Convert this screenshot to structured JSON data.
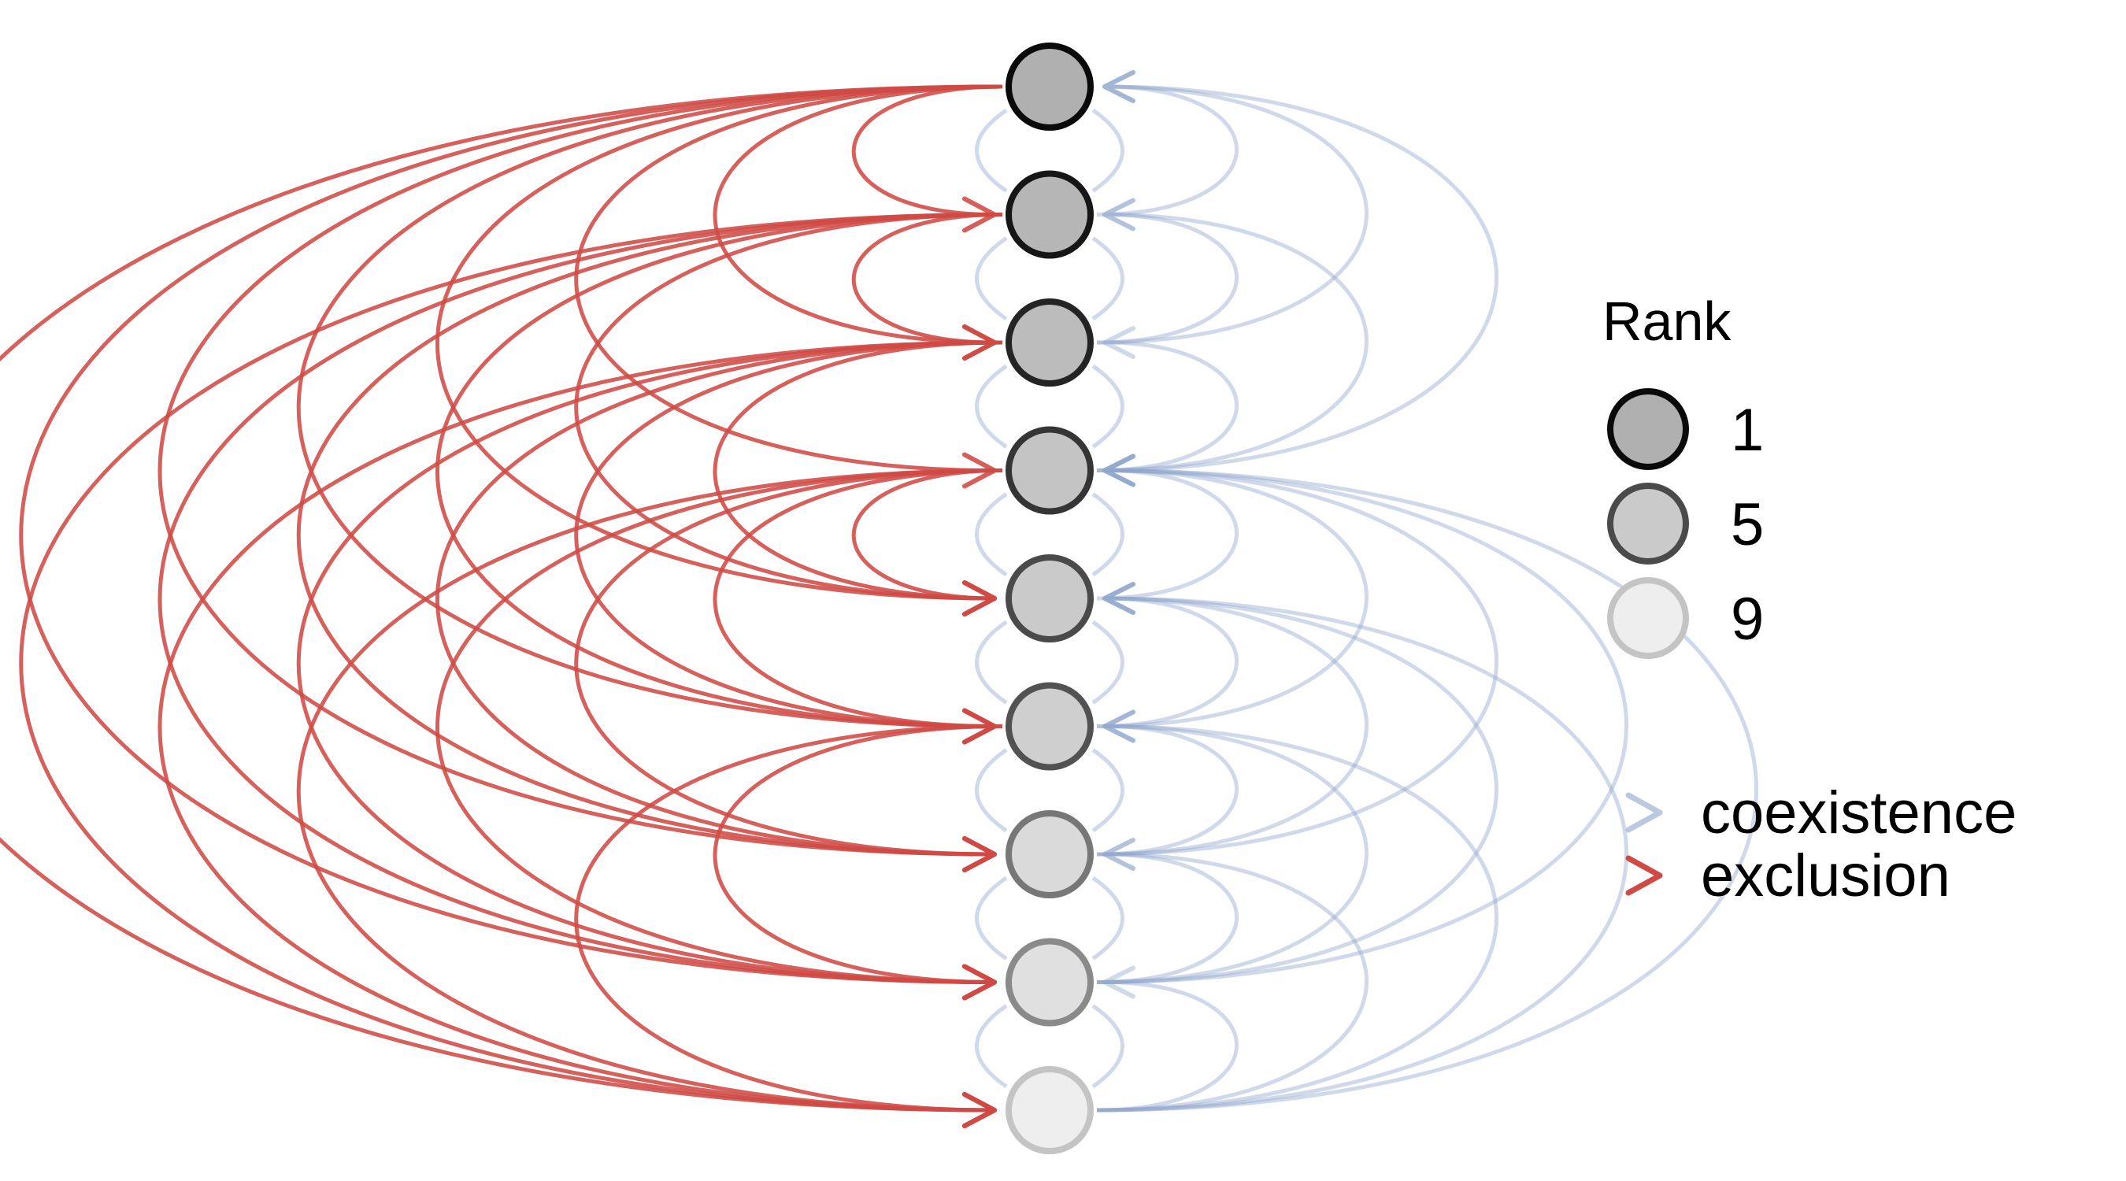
{
  "colors": {
    "coexistence": "#8ea5cc",
    "coexistence_dark": "#3f63a3",
    "exclusion": "#cf4a45",
    "background": "#ffffff"
  },
  "nodes": [
    {
      "rank": 1,
      "fill": "#b0b0b0",
      "stroke": "#0a0a0a"
    },
    {
      "rank": 2,
      "fill": "#b6b6b6",
      "stroke": "#161616"
    },
    {
      "rank": 3,
      "fill": "#bcbcbc",
      "stroke": "#242424"
    },
    {
      "rank": 4,
      "fill": "#c4c4c4",
      "stroke": "#353535"
    },
    {
      "rank": 5,
      "fill": "#cacaca",
      "stroke": "#4a4a4a"
    },
    {
      "rank": 6,
      "fill": "#cfcfcf",
      "stroke": "#525252"
    },
    {
      "rank": 7,
      "fill": "#dadada",
      "stroke": "#777777"
    },
    {
      "rank": 8,
      "fill": "#e0e0e0",
      "stroke": "#8a8a8a"
    },
    {
      "rank": 9,
      "fill": "#eeeeee",
      "stroke": "#c4c4c4"
    }
  ],
  "exclusion_edges": [
    [
      1,
      2
    ],
    [
      1,
      3
    ],
    [
      1,
      4
    ],
    [
      1,
      5
    ],
    [
      1,
      6
    ],
    [
      1,
      7
    ],
    [
      1,
      8
    ],
    [
      1,
      9
    ],
    [
      2,
      3
    ],
    [
      2,
      5
    ],
    [
      2,
      6
    ],
    [
      2,
      7
    ],
    [
      2,
      8
    ],
    [
      2,
      9
    ],
    [
      3,
      5
    ],
    [
      3,
      6
    ],
    [
      3,
      7
    ],
    [
      3,
      8
    ],
    [
      3,
      9
    ],
    [
      4,
      5
    ],
    [
      4,
      6
    ],
    [
      4,
      7
    ],
    [
      4,
      8
    ],
    [
      4,
      9
    ],
    [
      6,
      8
    ],
    [
      6,
      9
    ]
  ],
  "coexistence_edges": [
    [
      2,
      1
    ],
    [
      3,
      1
    ],
    [
      4,
      1
    ],
    [
      3,
      2
    ],
    [
      4,
      2
    ],
    [
      4,
      3
    ],
    [
      5,
      4
    ],
    [
      6,
      4
    ],
    [
      7,
      4
    ],
    [
      8,
      4
    ],
    [
      9,
      4
    ],
    [
      6,
      5
    ],
    [
      7,
      5
    ],
    [
      8,
      5
    ],
    [
      9,
      5
    ],
    [
      7,
      6
    ],
    [
      8,
      6
    ],
    [
      9,
      6
    ],
    [
      8,
      7
    ],
    [
      9,
      7
    ],
    [
      9,
      8
    ]
  ],
  "legend": {
    "rank_title": "Rank",
    "rank_items": [
      {
        "label": "1",
        "fill": "#b0b0b0",
        "stroke": "#0a0a0a"
      },
      {
        "label": "5",
        "fill": "#cacaca",
        "stroke": "#4a4a4a"
      },
      {
        "label": "9",
        "fill": "#eeeeee",
        "stroke": "#c4c4c4"
      }
    ],
    "edge_items": [
      {
        "label": "coexistence",
        "type": "coexistence"
      },
      {
        "label": "exclusion",
        "type": "exclusion"
      }
    ]
  }
}
